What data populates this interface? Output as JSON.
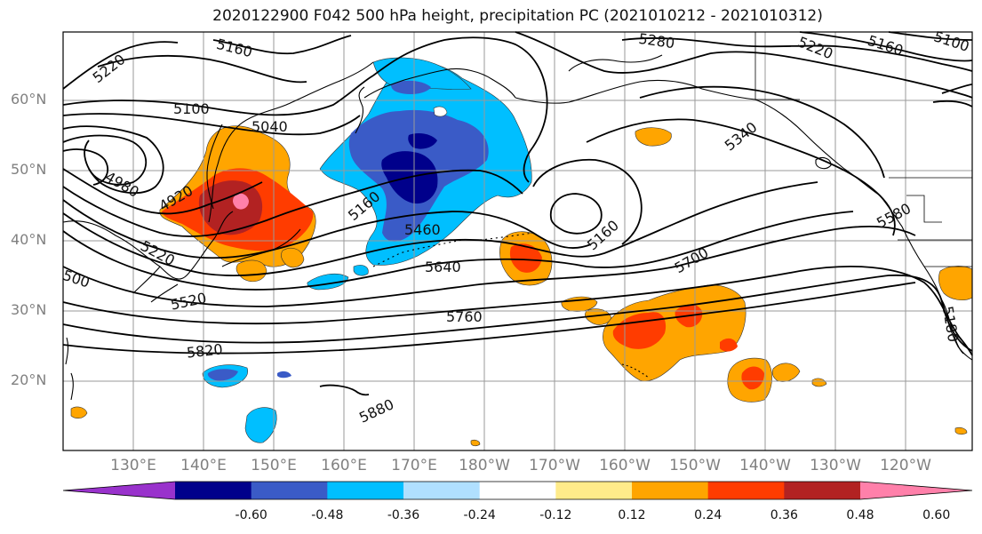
{
  "title": "2020122900 F042 500 hPa height, precipitation PC (2021010212 - 2021010312)",
  "lat_labels": [
    {
      "text": "60°N",
      "lat": 60
    },
    {
      "text": "50°N",
      "lat": 50
    },
    {
      "text": "40°N",
      "lat": 40
    },
    {
      "text": "30°N",
      "lat": 30
    },
    {
      "text": "20°N",
      "lat": 20
    }
  ],
  "lon_labels": [
    {
      "text": "130°E",
      "lon": 130
    },
    {
      "text": "140°E",
      "lon": 140
    },
    {
      "text": "150°E",
      "lon": 150
    },
    {
      "text": "160°E",
      "lon": 160
    },
    {
      "text": "170°E",
      "lon": 170
    },
    {
      "text": "180°W",
      "lon": 180
    },
    {
      "text": "170°W",
      "lon": 190
    },
    {
      "text": "160°W",
      "lon": 200
    },
    {
      "text": "150°W",
      "lon": 210
    },
    {
      "text": "140°W",
      "lon": 220
    },
    {
      "text": "130°W",
      "lon": 230
    },
    {
      "text": "120°W",
      "lon": 240
    }
  ],
  "contour_labels": [
    "5220",
    "5160",
    "5100",
    "5040",
    "4980",
    "4920",
    "5220",
    "5520",
    "5820",
    "5160",
    "5460",
    "5640",
    "5760",
    "5880",
    "5280",
    "5220",
    "5160",
    "5100",
    "5340",
    "5160",
    "5700",
    "5580",
    "5180",
    "500"
  ],
  "colorbar": {
    "colors": [
      "#9932CC",
      "#00008B",
      "#3A5BC7",
      "#00BFFF",
      "#B0E0FF",
      "#FFFFFF",
      "#FFEB8A",
      "#FFA500",
      "#FF3C00",
      "#B22222",
      "#FF80AA"
    ],
    "labels": [
      "-0.60",
      "-0.48",
      "-0.36",
      "-0.24",
      "-0.12",
      "0.12",
      "0.24",
      "0.36",
      "0.48",
      "0.60"
    ]
  }
}
